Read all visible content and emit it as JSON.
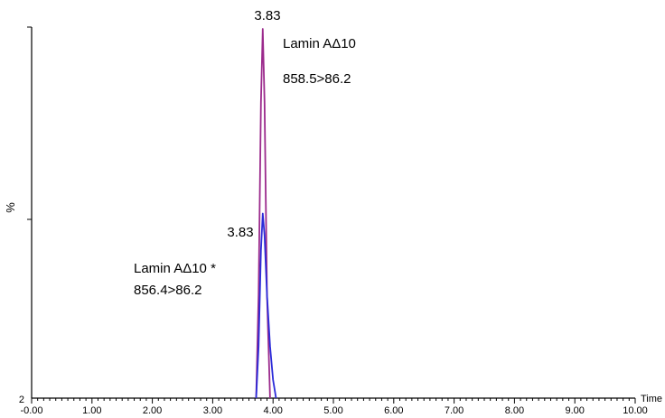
{
  "chart_data": {
    "type": "line",
    "xlabel": "Time",
    "ylabel": "%",
    "xlim": [
      0,
      10
    ],
    "x_ticks": [
      "-0.00",
      "1.00",
      "2.00",
      "3.00",
      "4.00",
      "5.00",
      "6.00",
      "7.00",
      "8.00",
      "9.00",
      "10.00"
    ],
    "y_ticks": [
      "2"
    ],
    "ylim": [
      0,
      100
    ],
    "grid": false,
    "series": [
      {
        "color": "#9b2a8c",
        "x": [
          3.72,
          3.76,
          3.8,
          3.83,
          3.86,
          3.9,
          3.95
        ],
        "y": [
          0,
          28,
          80,
          100,
          80,
          28,
          0
        ]
      },
      {
        "color": "#2b2bd9",
        "x": [
          3.72,
          3.76,
          3.8,
          3.83,
          3.86,
          3.9,
          3.95,
          4.0,
          4.05
        ],
        "y": [
          0,
          14,
          40,
          50,
          44,
          28,
          14,
          5,
          0
        ]
      }
    ],
    "annotations": [
      {
        "name": "peak-label-upper",
        "text": "3.83"
      },
      {
        "name": "peak-label-lower",
        "text": "3.83"
      },
      {
        "name": "compound-label-upper",
        "text": "Lamin AΔ10"
      },
      {
        "name": "transition-label-upper",
        "text": "858.5>86.2"
      },
      {
        "name": "compound-label-lower",
        "text": "Lamin AΔ10 *"
      },
      {
        "name": "transition-label-lower",
        "text": "856.4>86.2"
      }
    ]
  }
}
